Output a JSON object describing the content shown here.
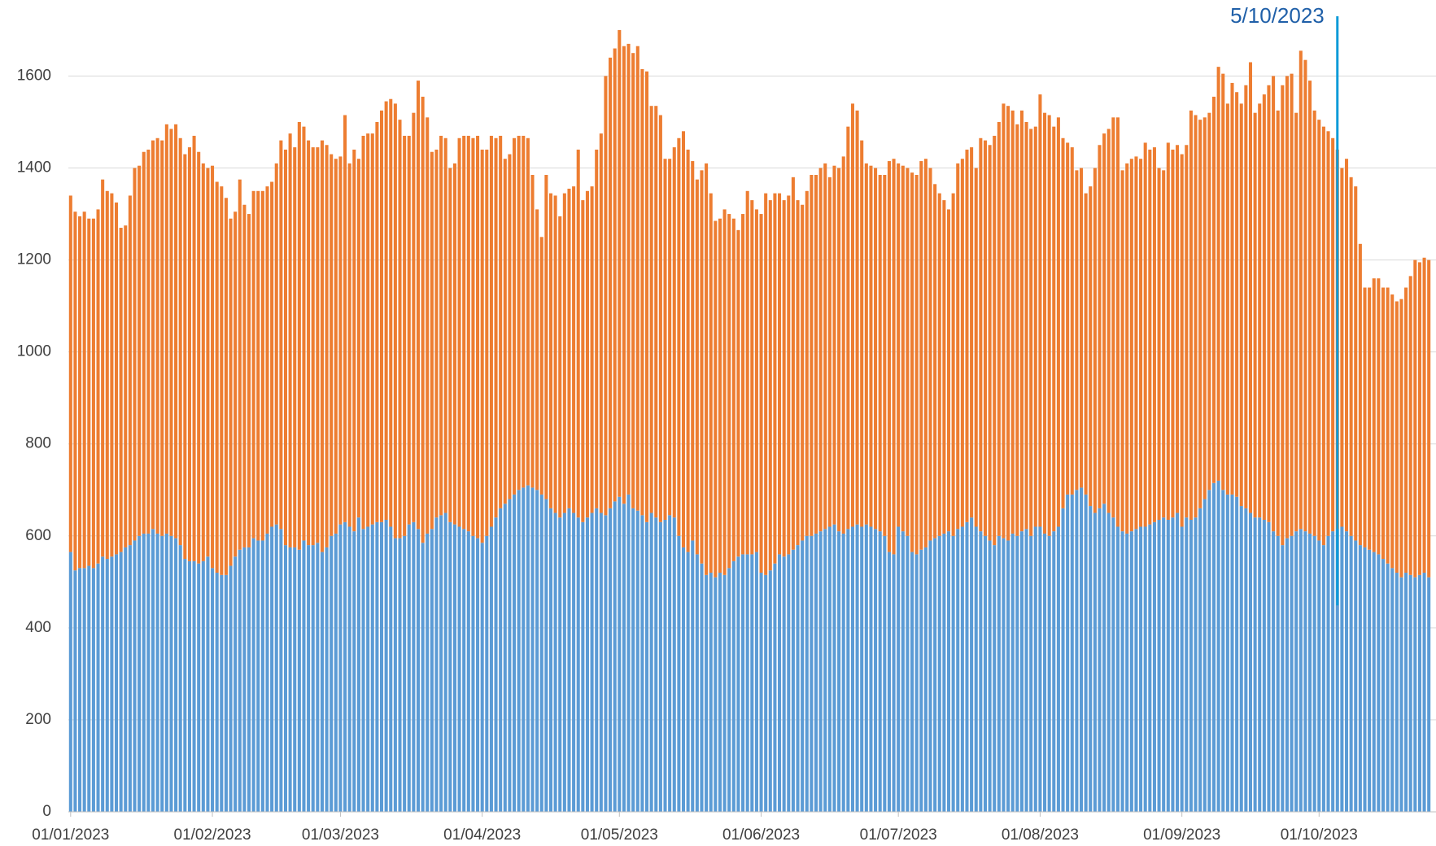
{
  "chart_data": {
    "type": "stacked_bar",
    "categories": [
      "01/01/2023",
      null,
      null,
      null,
      null,
      null,
      null,
      null,
      null,
      null,
      null,
      null,
      null,
      null,
      null,
      null,
      null,
      null,
      null,
      null,
      null,
      null,
      null,
      null,
      null,
      null,
      null,
      null,
      null,
      null,
      null,
      "01/02/2023",
      null,
      null,
      null,
      null,
      null,
      null,
      null,
      null,
      null,
      null,
      null,
      null,
      null,
      null,
      null,
      null,
      null,
      null,
      null,
      null,
      null,
      null,
      null,
      null,
      null,
      null,
      null,
      "01/03/2023",
      null,
      null,
      null,
      null,
      null,
      null,
      null,
      null,
      null,
      null,
      null,
      null,
      null,
      null,
      null,
      null,
      null,
      null,
      null,
      null,
      null,
      null,
      null,
      null,
      null,
      null,
      null,
      null,
      null,
      null,
      "01/04/2023",
      null,
      null,
      null,
      null,
      null,
      null,
      null,
      null,
      null,
      null,
      null,
      null,
      null,
      null,
      null,
      null,
      null,
      null,
      null,
      null,
      null,
      null,
      null,
      null,
      null,
      null,
      null,
      null,
      null,
      "01/05/2023",
      null,
      null,
      null,
      null,
      null,
      null,
      null,
      null,
      null,
      null,
      null,
      null,
      null,
      null,
      null,
      null,
      null,
      null,
      null,
      null,
      null,
      null,
      null,
      null,
      null,
      null,
      null,
      null,
      null,
      null,
      "01/06/2023",
      null,
      null,
      null,
      null,
      null,
      null,
      null,
      null,
      null,
      null,
      null,
      null,
      null,
      null,
      null,
      null,
      null,
      null,
      null,
      null,
      null,
      null,
      null,
      null,
      null,
      null,
      null,
      null,
      null,
      "01/07/2023",
      null,
      null,
      null,
      null,
      null,
      null,
      null,
      null,
      null,
      null,
      null,
      null,
      null,
      null,
      null,
      null,
      null,
      null,
      null,
      null,
      null,
      null,
      null,
      null,
      null,
      null,
      null,
      null,
      null,
      null,
      "01/08/2023",
      null,
      null,
      null,
      null,
      null,
      null,
      null,
      null,
      null,
      null,
      null,
      null,
      null,
      null,
      null,
      null,
      null,
      null,
      null,
      null,
      null,
      null,
      null,
      null,
      null,
      null,
      null,
      null,
      null,
      null,
      "01/09/2023",
      null,
      null,
      null,
      null,
      null,
      null,
      null,
      null,
      null,
      null,
      null,
      null,
      null,
      null,
      null,
      null,
      null,
      null,
      null,
      null,
      null,
      null,
      null,
      null,
      null,
      null,
      null,
      null,
      null,
      "01/10/2023",
      null,
      null,
      null,
      null,
      null,
      null,
      null,
      null,
      null,
      null,
      null,
      null,
      null,
      null,
      null,
      null,
      null,
      null,
      null,
      null,
      null,
      null,
      null,
      null
    ],
    "series": [
      {
        "color": "#5b9bd5",
        "values": [
          565,
          525,
          530,
          530,
          535,
          530,
          540,
          555,
          550,
          555,
          560,
          565,
          575,
          580,
          590,
          600,
          605,
          605,
          615,
          605,
          600,
          605,
          600,
          595,
          580,
          550,
          545,
          545,
          540,
          545,
          555,
          530,
          520,
          515,
          515,
          535,
          555,
          570,
          575,
          575,
          595,
          590,
          590,
          605,
          620,
          625,
          615,
          580,
          575,
          575,
          570,
          590,
          580,
          580,
          585,
          565,
          575,
          600,
          605,
          625,
          630,
          620,
          610,
          640,
          615,
          620,
          625,
          630,
          630,
          635,
          620,
          595,
          595,
          600,
          625,
          630,
          615,
          585,
          605,
          615,
          640,
          645,
          650,
          630,
          625,
          620,
          615,
          610,
          600,
          595,
          585,
          600,
          620,
          640,
          660,
          670,
          680,
          690,
          700,
          705,
          710,
          705,
          700,
          690,
          680,
          660,
          650,
          640,
          650,
          660,
          650,
          640,
          630,
          640,
          650,
          660,
          650,
          645,
          660,
          675,
          685,
          670,
          690,
          660,
          655,
          645,
          630,
          650,
          640,
          630,
          635,
          645,
          640,
          600,
          575,
          565,
          590,
          560,
          540,
          515,
          520,
          510,
          520,
          515,
          530,
          545,
          555,
          560,
          560,
          560,
          565,
          520,
          515,
          525,
          540,
          560,
          555,
          560,
          570,
          580,
          590,
          600,
          600,
          605,
          610,
          615,
          620,
          625,
          610,
          605,
          615,
          620,
          625,
          620,
          625,
          620,
          615,
          610,
          600,
          565,
          560,
          620,
          610,
          600,
          565,
          560,
          570,
          575,
          590,
          595,
          600,
          605,
          610,
          600,
          615,
          620,
          630,
          640,
          620,
          610,
          600,
          590,
          580,
          600,
          595,
          590,
          605,
          600,
          610,
          615,
          600,
          620,
          620,
          605,
          600,
          610,
          620,
          660,
          690,
          690,
          700,
          705,
          690,
          665,
          650,
          660,
          670,
          650,
          640,
          620,
          610,
          605,
          610,
          615,
          620,
          620,
          625,
          630,
          635,
          640,
          635,
          640,
          650,
          620,
          640,
          635,
          640,
          660,
          680,
          700,
          715,
          720,
          700,
          690,
          690,
          685,
          665,
          660,
          650,
          640,
          640,
          635,
          630,
          610,
          600,
          580,
          595,
          600,
          610,
          615,
          610,
          605,
          600,
          590,
          580,
          600,
          610,
          615,
          620,
          610,
          600,
          590,
          580,
          575,
          570,
          565,
          560,
          550,
          540,
          530,
          520,
          510,
          520,
          515,
          510,
          515,
          520,
          510
        ]
      },
      {
        "color": "#ed7d31",
        "values": [
          775,
          780,
          765,
          775,
          755,
          760,
          770,
          820,
          800,
          790,
          765,
          705,
          700,
          760,
          810,
          805,
          830,
          835,
          845,
          860,
          860,
          890,
          885,
          900,
          885,
          880,
          900,
          925,
          895,
          865,
          845,
          875,
          850,
          845,
          820,
          755,
          750,
          805,
          745,
          725,
          755,
          760,
          760,
          755,
          750,
          785,
          845,
          860,
          900,
          870,
          930,
          900,
          880,
          865,
          860,
          895,
          875,
          830,
          815,
          800,
          885,
          790,
          830,
          780,
          855,
          855,
          850,
          870,
          895,
          910,
          930,
          945,
          910,
          870,
          845,
          890,
          975,
          970,
          905,
          820,
          800,
          825,
          815,
          770,
          785,
          845,
          855,
          860,
          865,
          875,
          855,
          840,
          850,
          825,
          810,
          750,
          750,
          775,
          770,
          765,
          755,
          680,
          610,
          560,
          705,
          685,
          690,
          655,
          695,
          695,
          710,
          800,
          700,
          710,
          710,
          780,
          825,
          955,
          980,
          985,
          1015,
          995,
          980,
          990,
          1010,
          970,
          980,
          885,
          895,
          885,
          785,
          775,
          805,
          865,
          905,
          875,
          825,
          815,
          855,
          895,
          825,
          775,
          770,
          795,
          770,
          745,
          710,
          740,
          790,
          770,
          745,
          780,
          830,
          805,
          805,
          785,
          775,
          780,
          810,
          750,
          730,
          750,
          785,
          780,
          790,
          795,
          760,
          780,
          790,
          820,
          875,
          920,
          900,
          840,
          785,
          785,
          785,
          775,
          785,
          850,
          860,
          790,
          795,
          800,
          825,
          825,
          845,
          845,
          810,
          770,
          745,
          725,
          700,
          745,
          795,
          800,
          810,
          805,
          780,
          855,
          860,
          860,
          890,
          900,
          945,
          945,
          920,
          895,
          915,
          885,
          885,
          870,
          940,
          915,
          915,
          880,
          890,
          805,
          765,
          755,
          695,
          695,
          655,
          695,
          750,
          790,
          805,
          835,
          870,
          890,
          785,
          805,
          810,
          810,
          800,
          835,
          815,
          815,
          765,
          755,
          820,
          800,
          800,
          810,
          810,
          890,
          875,
          845,
          830,
          820,
          840,
          900,
          905,
          850,
          895,
          880,
          875,
          920,
          980,
          880,
          900,
          925,
          950,
          990,
          925,
          1000,
          1005,
          1005,
          910,
          1040,
          1025,
          985,
          925,
          915,
          910,
          880,
          855,
          825,
          780,
          810,
          780,
          770,
          655,
          565,
          570,
          595,
          600,
          590,
          600,
          595,
          590,
          605,
          620,
          650,
          690,
          680,
          685,
          690
        ]
      }
    ],
    "ylim": [
      0,
      1760
    ],
    "yticks": [
      0,
      200,
      400,
      600,
      800,
      1000,
      1200,
      1400,
      1600
    ],
    "grid": true,
    "annotation": {
      "text": "5/10/2023",
      "color": "#0e9bd8",
      "text_color": "#1f5fa8"
    }
  }
}
